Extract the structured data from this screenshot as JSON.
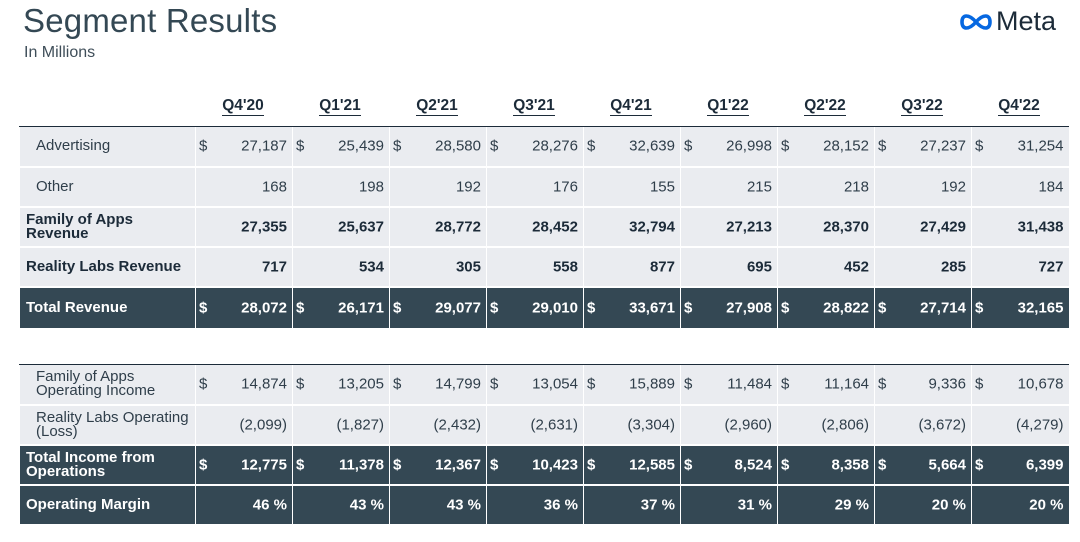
{
  "header": {
    "title": "Segment Results",
    "subtitle": "In Millions",
    "logo_text": "Meta"
  },
  "quarters": [
    "Q4'20",
    "Q1'21",
    "Q2'21",
    "Q3'21",
    "Q4'21",
    "Q1'22",
    "Q2'22",
    "Q3'22",
    "Q4'22"
  ],
  "revenue_rows": [
    {
      "label": "Advertising",
      "dollar": true,
      "values": [
        "27,187",
        "25,439",
        "28,580",
        "28,276",
        "32,639",
        "26,998",
        "28,152",
        "27,237",
        "31,254"
      ]
    },
    {
      "label": "Other",
      "dollar": false,
      "values": [
        "168",
        "198",
        "192",
        "176",
        "155",
        "215",
        "218",
        "192",
        "184"
      ]
    },
    {
      "label": "Family of Apps Revenue",
      "dollar": false,
      "values": [
        "27,355",
        "25,637",
        "28,772",
        "28,452",
        "32,794",
        "27,213",
        "28,370",
        "27,429",
        "31,438"
      ]
    },
    {
      "label": "Reality Labs Revenue",
      "dollar": false,
      "values": [
        "717",
        "534",
        "305",
        "558",
        "877",
        "695",
        "452",
        "285",
        "727"
      ]
    },
    {
      "label": "Total Revenue",
      "dollar": true,
      "values": [
        "28,072",
        "26,171",
        "29,077",
        "29,010",
        "33,671",
        "27,908",
        "28,822",
        "27,714",
        "32,165"
      ]
    }
  ],
  "income_rows": [
    {
      "label": "Family of Apps Operating Income",
      "dollar": true,
      "values": [
        "14,874",
        "13,205",
        "14,799",
        "13,054",
        "15,889",
        "11,484",
        "11,164",
        "9,336",
        "10,678"
      ]
    },
    {
      "label": "Reality Labs Operating (Loss)",
      "dollar": false,
      "values": [
        "(2,099)",
        "(1,827)",
        "(2,432)",
        "(2,631)",
        "(3,304)",
        "(2,960)",
        "(2,806)",
        "(3,672)",
        "(4,279)"
      ]
    },
    {
      "label": "Total Income from Operations",
      "dollar": true,
      "values": [
        "12,775",
        "11,378",
        "12,367",
        "10,423",
        "12,585",
        "8,524",
        "8,358",
        "5,664",
        "6,399"
      ]
    },
    {
      "label": "Operating Margin",
      "dollar": false,
      "values": [
        "46 %",
        "43 %",
        "43 %",
        "36 %",
        "37 %",
        "31 %",
        "29 %",
        "20 %",
        "20 %"
      ]
    }
  ],
  "colors": {
    "dark_row": "#344854",
    "light_row": "#eaecf0",
    "text": "#1c2b39",
    "logo_blue": "#0668e1"
  },
  "icons": {
    "logo": "meta-infinity-icon"
  }
}
